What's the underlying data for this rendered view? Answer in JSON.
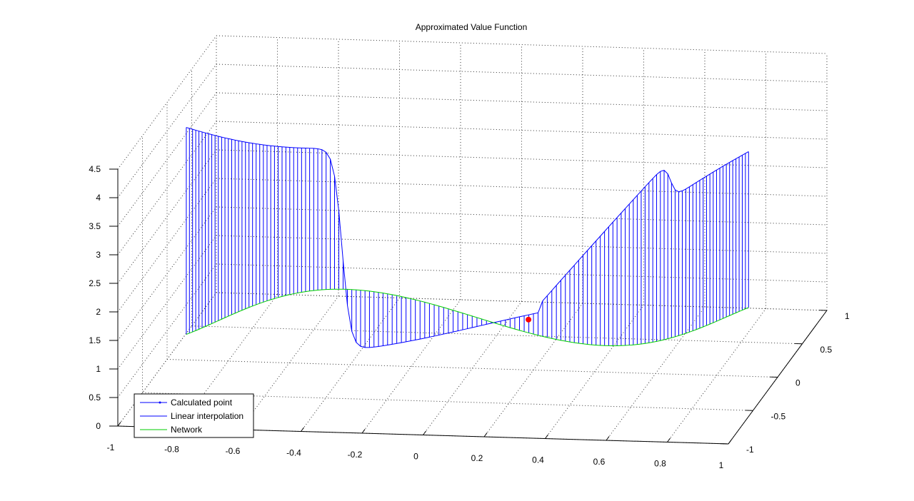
{
  "chart_data": {
    "type": "line",
    "projection": "3d",
    "title": "Approximated Value Function",
    "xlabel": "",
    "ylabel": "",
    "zlabel": "",
    "xlim": [
      -1,
      1
    ],
    "ylim": [
      -1,
      1
    ],
    "zlim": [
      0,
      4.5
    ],
    "x_ticks": [
      "-1",
      "-0.8",
      "-0.6",
      "-0.4",
      "-0.2",
      "0",
      "0.2",
      "0.4",
      "0.6",
      "0.8",
      "1"
    ],
    "y_ticks": [
      "-1",
      "-0.5",
      "0",
      "0.5",
      "1"
    ],
    "z_ticks": [
      "0",
      "0.5",
      "1",
      "1.5",
      "2",
      "2.5",
      "3",
      "3.5",
      "4",
      "4.5"
    ],
    "grid": true,
    "legend": {
      "placement": "bottom-left",
      "entries": [
        "Calculated point",
        "Linear interpolation",
        "Network"
      ]
    },
    "series": [
      {
        "name": "Calculated point",
        "color": "#ff0000",
        "points": [
          {
            "x": 0.2,
            "y": -0.1,
            "z": 1.0
          }
        ]
      },
      {
        "name": "Linear interpolation",
        "color": "#0000ff",
        "style": "stem"
      },
      {
        "name": "Network",
        "color": "#00cc00",
        "style": "line"
      }
    ]
  }
}
